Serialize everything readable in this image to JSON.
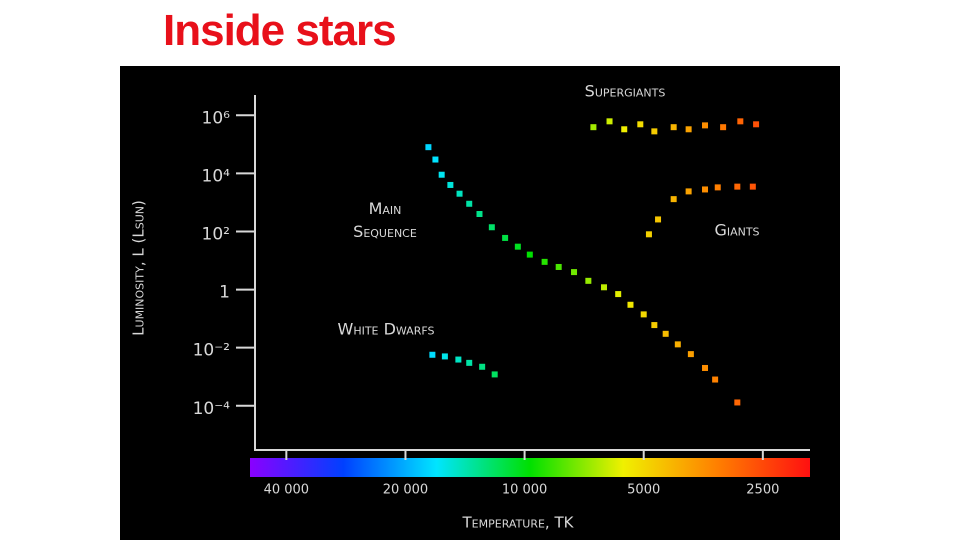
{
  "title": "Inside stars",
  "chart_data": {
    "type": "scatter",
    "ylabel": "Luminosity, L (Lsun)",
    "xlabel": "Temperature, TK",
    "log_x": true,
    "log_y": true,
    "xlim": [
      48000,
      1900
    ],
    "ylim": [
      3e-06,
      5000000
    ],
    "xticks": [
      {
        "value": 40000,
        "label": "40 000"
      },
      {
        "value": 20000,
        "label": "20 000"
      },
      {
        "value": 10000,
        "label": "10 000"
      },
      5000,
      2500
    ],
    "yticks": [
      {
        "value": 1000000,
        "label": "10⁶"
      },
      {
        "value": 10000,
        "label": "10⁴"
      },
      {
        "value": 100,
        "label": "10²"
      },
      1,
      {
        "value": 0.01,
        "label": "10⁻²"
      },
      {
        "value": 0.0001,
        "label": "10⁻⁴"
      }
    ],
    "colorbar": [
      "#8a00ff",
      "#0040ff",
      "#00e5ff",
      "#00e000",
      "#f0f000",
      "#ff8000",
      "#ff1010"
    ],
    "series": [
      {
        "name": "Main Sequence",
        "x": [
          17500,
          16800,
          16200,
          15400,
          14600,
          13800,
          13000,
          12100,
          11200,
          10400,
          9700,
          8900,
          8200,
          7500,
          6900,
          6300,
          5800,
          5400,
          5000,
          4700,
          4400,
          4100,
          3800,
          3500,
          3300,
          2900
        ],
        "values": [
          80000,
          30000,
          9000,
          4000,
          2000,
          900,
          400,
          140,
          60,
          30,
          16,
          9,
          6,
          4,
          2,
          1.2,
          0.7,
          0.3,
          0.14,
          0.06,
          0.03,
          0.013,
          0.006,
          0.002,
          0.0008,
          0.00013
        ]
      },
      {
        "name": "Giants",
        "x": [
          4850,
          4600,
          4200,
          3850,
          3500,
          3250,
          2900,
          2650
        ],
        "values": [
          80,
          260,
          1300,
          2400,
          2800,
          3300,
          3500,
          3500
        ]
      },
      {
        "name": "Supergiants",
        "x": [
          6700,
          6100,
          5600,
          5100,
          4700,
          4200,
          3850,
          3500,
          3150,
          2850,
          2600
        ],
        "values": [
          390000,
          620000,
          330000,
          490000,
          280000,
          390000,
          330000,
          450000,
          390000,
          620000,
          490000
        ]
      },
      {
        "name": "White Dwarfs",
        "x": [
          17100,
          15900,
          14700,
          13800,
          12800,
          11900
        ],
        "values": [
          0.0057,
          0.005,
          0.0039,
          0.003,
          0.0022,
          0.0012
        ]
      }
    ]
  }
}
